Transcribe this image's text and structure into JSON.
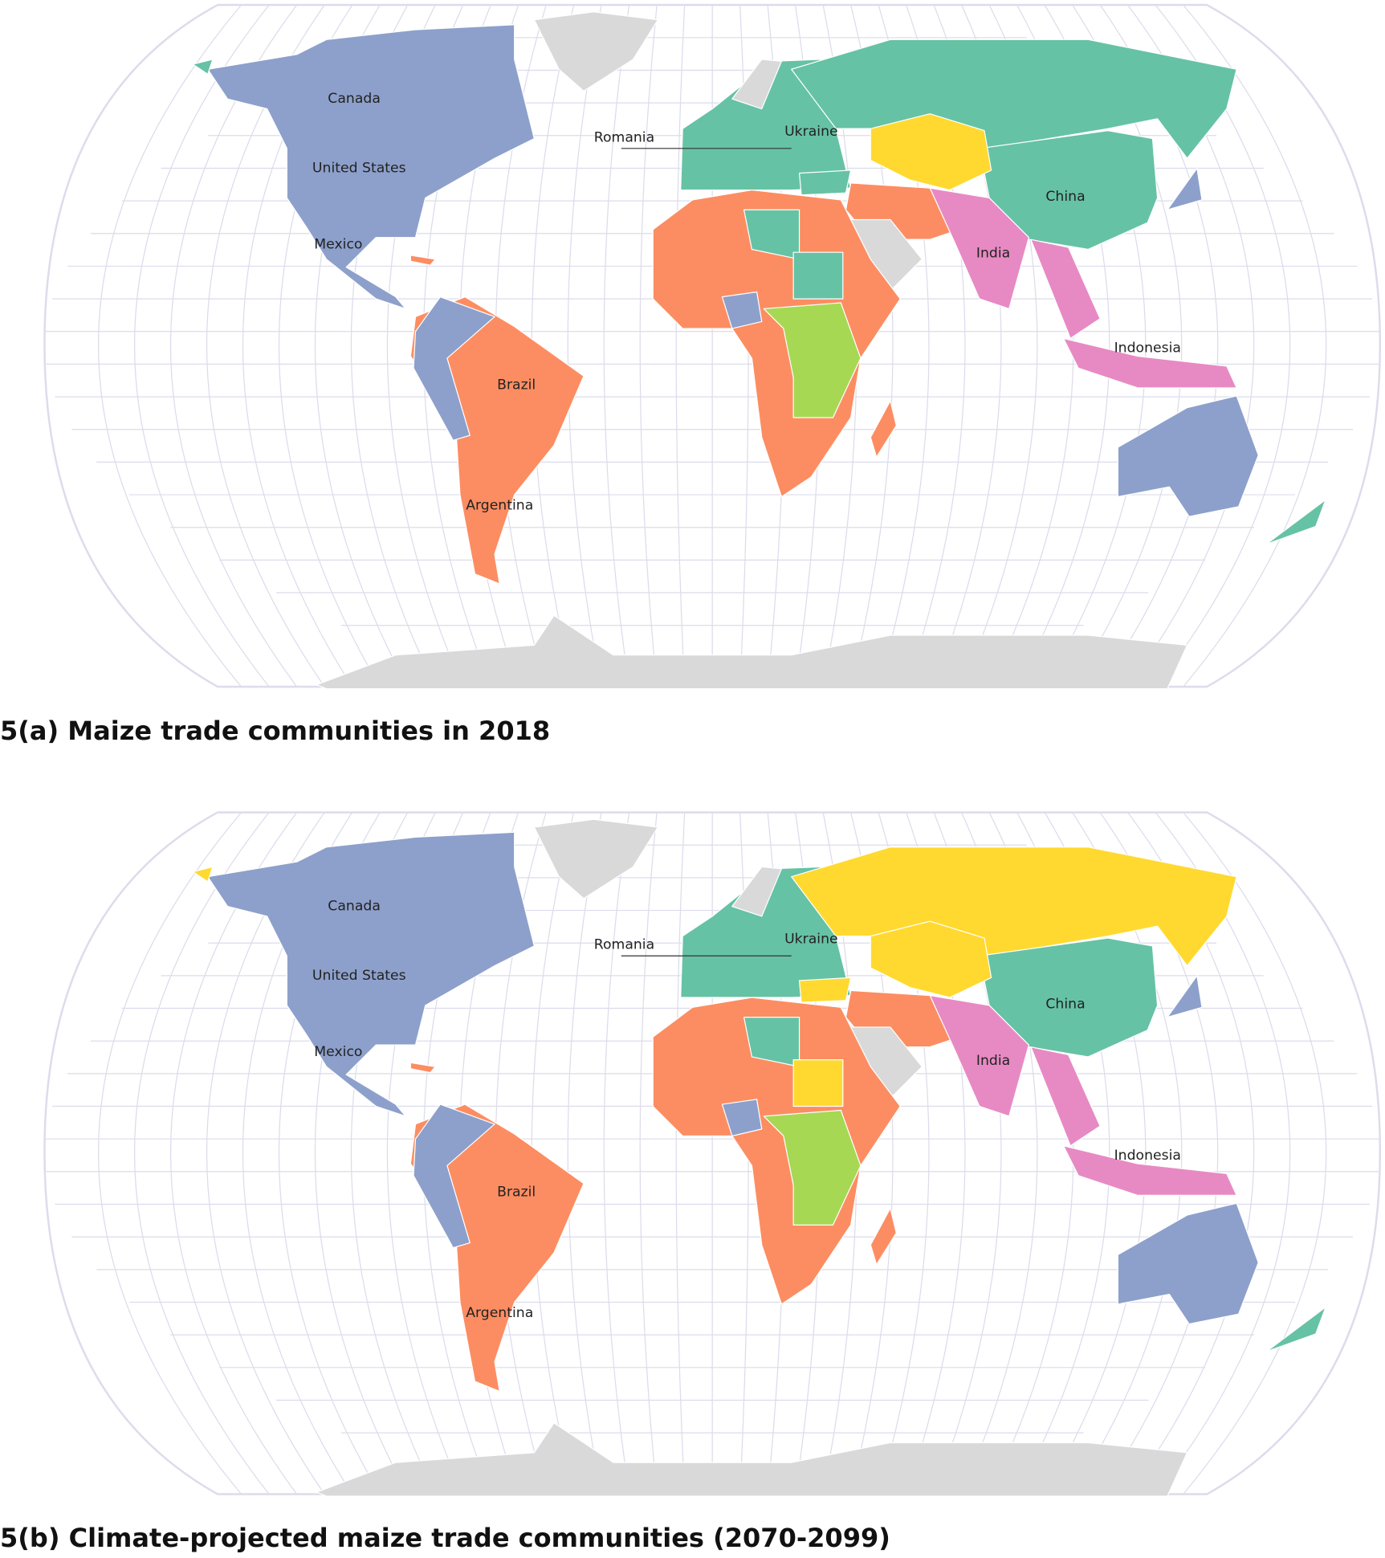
{
  "maps": [
    {
      "caption": "5(a) Maize trade communities in 2018",
      "labels": [
        "Canada",
        "United States",
        "Mexico",
        "Brazil",
        "Argentina",
        "Romania",
        "Ukraine",
        "China",
        "India",
        "Indonesia"
      ]
    },
    {
      "caption": "5(b) Climate-projected maize trade communities (2070-2099)",
      "labels": [
        "Canada",
        "United States",
        "Mexico",
        "Brazil",
        "Argentina",
        "Romania",
        "Ukraine",
        "China",
        "India",
        "Indonesia"
      ]
    }
  ]
}
